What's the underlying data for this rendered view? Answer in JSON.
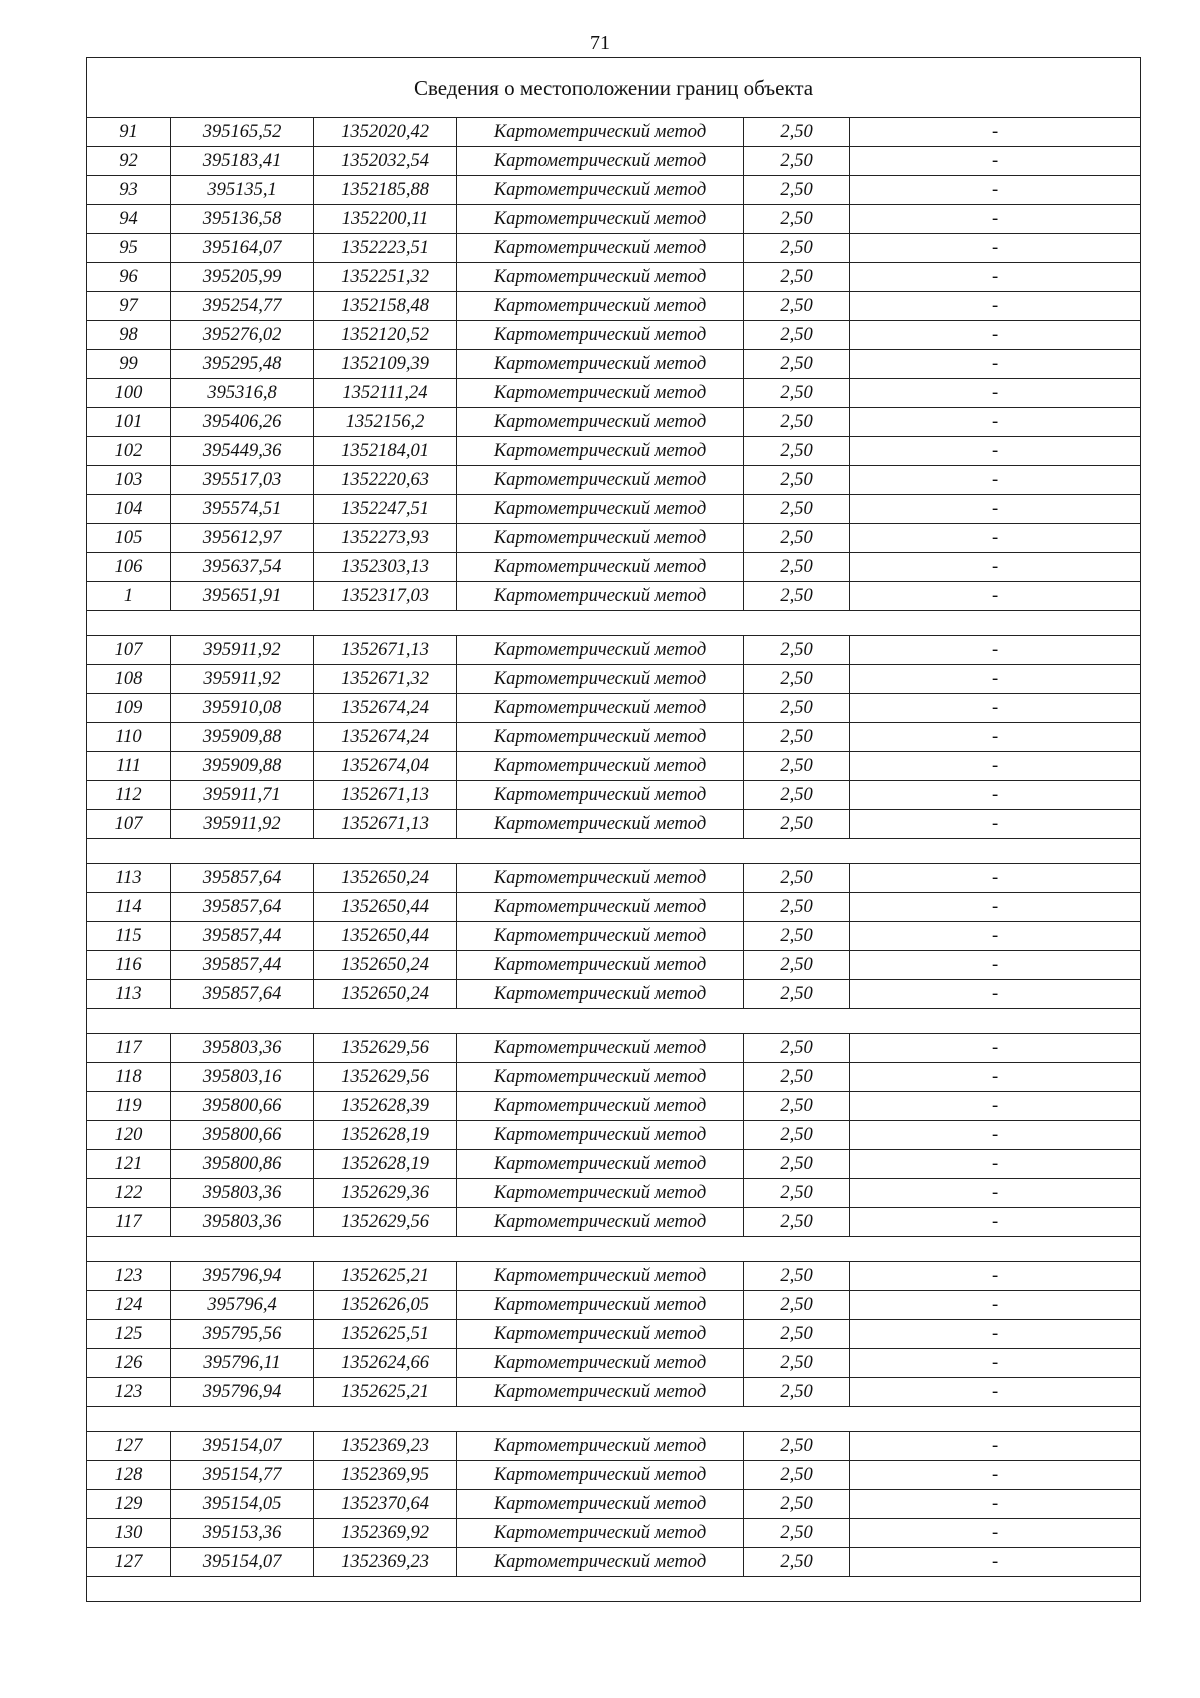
{
  "page_number": "71",
  "table": {
    "title": "Сведения о местоположении границ объекта",
    "groups": [
      [
        [
          "91",
          "395165,52",
          "1352020,42",
          "Картометрический метод",
          "2,50",
          "-"
        ],
        [
          "92",
          "395183,41",
          "1352032,54",
          "Картометрический метод",
          "2,50",
          "-"
        ],
        [
          "93",
          "395135,1",
          "1352185,88",
          "Картометрический метод",
          "2,50",
          "-"
        ],
        [
          "94",
          "395136,58",
          "1352200,11",
          "Картометрический метод",
          "2,50",
          "-"
        ],
        [
          "95",
          "395164,07",
          "1352223,51",
          "Картометрический метод",
          "2,50",
          "-"
        ],
        [
          "96",
          "395205,99",
          "1352251,32",
          "Картометрический метод",
          "2,50",
          "-"
        ],
        [
          "97",
          "395254,77",
          "1352158,48",
          "Картометрический метод",
          "2,50",
          "-"
        ],
        [
          "98",
          "395276,02",
          "1352120,52",
          "Картометрический метод",
          "2,50",
          "-"
        ],
        [
          "99",
          "395295,48",
          "1352109,39",
          "Картометрический метод",
          "2,50",
          "-"
        ],
        [
          "100",
          "395316,8",
          "1352111,24",
          "Картометрический метод",
          "2,50",
          "-"
        ],
        [
          "101",
          "395406,26",
          "1352156,2",
          "Картометрический метод",
          "2,50",
          "-"
        ],
        [
          "102",
          "395449,36",
          "1352184,01",
          "Картометрический метод",
          "2,50",
          "-"
        ],
        [
          "103",
          "395517,03",
          "1352220,63",
          "Картометрический метод",
          "2,50",
          "-"
        ],
        [
          "104",
          "395574,51",
          "1352247,51",
          "Картометрический метод",
          "2,50",
          "-"
        ],
        [
          "105",
          "395612,97",
          "1352273,93",
          "Картометрический метод",
          "2,50",
          "-"
        ],
        [
          "106",
          "395637,54",
          "1352303,13",
          "Картометрический метод",
          "2,50",
          "-"
        ],
        [
          "1",
          "395651,91",
          "1352317,03",
          "Картометрический метод",
          "2,50",
          "-"
        ]
      ],
      [
        [
          "107",
          "395911,92",
          "1352671,13",
          "Картометрический метод",
          "2,50",
          "-"
        ],
        [
          "108",
          "395911,92",
          "1352671,32",
          "Картометрический метод",
          "2,50",
          "-"
        ],
        [
          "109",
          "395910,08",
          "1352674,24",
          "Картометрический метод",
          "2,50",
          "-"
        ],
        [
          "110",
          "395909,88",
          "1352674,24",
          "Картометрический метод",
          "2,50",
          "-"
        ],
        [
          "111",
          "395909,88",
          "1352674,04",
          "Картометрический метод",
          "2,50",
          "-"
        ],
        [
          "112",
          "395911,71",
          "1352671,13",
          "Картометрический метод",
          "2,50",
          "-"
        ],
        [
          "107",
          "395911,92",
          "1352671,13",
          "Картометрический метод",
          "2,50",
          "-"
        ]
      ],
      [
        [
          "113",
          "395857,64",
          "1352650,24",
          "Картометрический метод",
          "2,50",
          "-"
        ],
        [
          "114",
          "395857,64",
          "1352650,44",
          "Картометрический метод",
          "2,50",
          "-"
        ],
        [
          "115",
          "395857,44",
          "1352650,44",
          "Картометрический метод",
          "2,50",
          "-"
        ],
        [
          "116",
          "395857,44",
          "1352650,24",
          "Картометрический метод",
          "2,50",
          "-"
        ],
        [
          "113",
          "395857,64",
          "1352650,24",
          "Картометрический метод",
          "2,50",
          "-"
        ]
      ],
      [
        [
          "117",
          "395803,36",
          "1352629,56",
          "Картометрический метод",
          "2,50",
          "-"
        ],
        [
          "118",
          "395803,16",
          "1352629,56",
          "Картометрический метод",
          "2,50",
          "-"
        ],
        [
          "119",
          "395800,66",
          "1352628,39",
          "Картометрический метод",
          "2,50",
          "-"
        ],
        [
          "120",
          "395800,66",
          "1352628,19",
          "Картометрический метод",
          "2,50",
          "-"
        ],
        [
          "121",
          "395800,86",
          "1352628,19",
          "Картометрический метод",
          "2,50",
          "-"
        ],
        [
          "122",
          "395803,36",
          "1352629,36",
          "Картометрический метод",
          "2,50",
          "-"
        ],
        [
          "117",
          "395803,36",
          "1352629,56",
          "Картометрический метод",
          "2,50",
          "-"
        ]
      ],
      [
        [
          "123",
          "395796,94",
          "1352625,21",
          "Картометрический метод",
          "2,50",
          "-"
        ],
        [
          "124",
          "395796,4",
          "1352626,05",
          "Картометрический метод",
          "2,50",
          "-"
        ],
        [
          "125",
          "395795,56",
          "1352625,51",
          "Картометрический метод",
          "2,50",
          "-"
        ],
        [
          "126",
          "395796,11",
          "1352624,66",
          "Картометрический метод",
          "2,50",
          "-"
        ],
        [
          "123",
          "395796,94",
          "1352625,21",
          "Картометрический метод",
          "2,50",
          "-"
        ]
      ],
      [
        [
          "127",
          "395154,07",
          "1352369,23",
          "Картометрический метод",
          "2,50",
          "-"
        ],
        [
          "128",
          "395154,77",
          "1352369,95",
          "Картометрический метод",
          "2,50",
          "-"
        ],
        [
          "129",
          "395154,05",
          "1352370,64",
          "Картометрический метод",
          "2,50",
          "-"
        ],
        [
          "130",
          "395153,36",
          "1352369,92",
          "Картометрический метод",
          "2,50",
          "-"
        ],
        [
          "127",
          "395154,07",
          "1352369,23",
          "Картометрический метод",
          "2,50",
          "-"
        ]
      ]
    ]
  }
}
